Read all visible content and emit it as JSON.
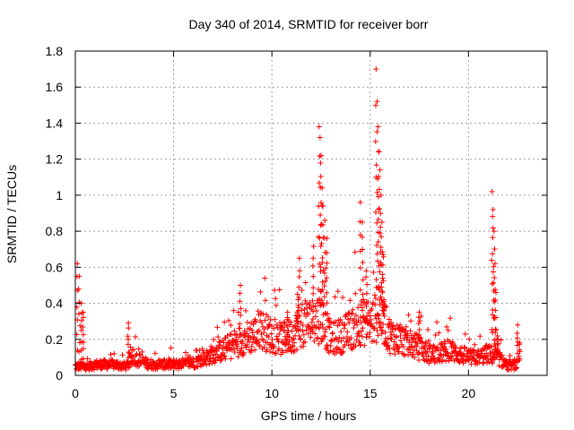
{
  "chart_data": {
    "type": "scatter",
    "title": "Day 340 of 2014, SRMTID for receiver borr",
    "xlabel": "GPS time / hours",
    "ylabel": "SRMTID / TECUs",
    "xlim": [
      0,
      24
    ],
    "ylim": [
      0,
      1.8
    ],
    "xticks": [
      0,
      5,
      10,
      15,
      20
    ],
    "xtick_labels": [
      "0",
      "5",
      "10",
      "15",
      "20"
    ],
    "yticks": [
      0,
      0.2,
      0.4,
      0.6,
      0.8,
      1.0,
      1.2,
      1.4,
      1.6,
      1.8
    ],
    "ytick_labels": [
      "0",
      "0.2",
      "0.4",
      "0.6",
      "0.8",
      "1",
      "1.2",
      "1.4",
      "1.6",
      "1.8"
    ],
    "grid": true,
    "marker": "+",
    "color": "#ff0000",
    "series": [
      {
        "name": "SRMTID",
        "envelope_note": "dense point cloud; baseline and peaks read from plot",
        "baseline": [
          [
            0.0,
            0.05
          ],
          [
            0.7,
            0.05
          ],
          [
            1.0,
            0.06
          ],
          [
            2.0,
            0.06
          ],
          [
            2.6,
            0.05
          ],
          [
            3.0,
            0.1
          ],
          [
            3.5,
            0.07
          ],
          [
            4.0,
            0.06
          ],
          [
            5.0,
            0.06
          ],
          [
            6.0,
            0.07
          ],
          [
            6.5,
            0.09
          ],
          [
            7.0,
            0.12
          ],
          [
            7.5,
            0.14
          ],
          [
            8.0,
            0.17
          ],
          [
            8.5,
            0.2
          ],
          [
            9.0,
            0.22
          ],
          [
            9.5,
            0.25
          ],
          [
            10.0,
            0.22
          ],
          [
            10.5,
            0.2
          ],
          [
            11.0,
            0.22
          ],
          [
            11.5,
            0.28
          ],
          [
            12.0,
            0.3
          ],
          [
            12.5,
            0.32
          ],
          [
            13.0,
            0.2
          ],
          [
            13.5,
            0.22
          ],
          [
            14.0,
            0.25
          ],
          [
            14.5,
            0.3
          ],
          [
            15.0,
            0.28
          ],
          [
            15.5,
            0.35
          ],
          [
            16.0,
            0.22
          ],
          [
            16.5,
            0.2
          ],
          [
            17.0,
            0.18
          ],
          [
            17.5,
            0.15
          ],
          [
            18.0,
            0.12
          ],
          [
            18.5,
            0.12
          ],
          [
            19.0,
            0.14
          ],
          [
            19.5,
            0.12
          ],
          [
            20.0,
            0.1
          ],
          [
            20.5,
            0.1
          ],
          [
            21.0,
            0.12
          ],
          [
            21.5,
            0.1
          ],
          [
            22.0,
            0.05
          ],
          [
            22.5,
            0.06
          ]
        ],
        "peaks": [
          [
            0.1,
            0.62
          ],
          [
            0.2,
            0.55
          ],
          [
            0.3,
            0.4
          ],
          [
            0.4,
            0.35
          ],
          [
            2.7,
            0.29
          ],
          [
            8.4,
            0.5
          ],
          [
            10.8,
            0.35
          ],
          [
            11.3,
            0.45
          ],
          [
            11.4,
            0.65
          ],
          [
            12.1,
            0.65
          ],
          [
            12.4,
            1.38
          ],
          [
            12.45,
            1.32
          ],
          [
            12.5,
            1.22
          ],
          [
            12.55,
            1.04
          ],
          [
            12.6,
            0.94
          ],
          [
            12.7,
            0.86
          ],
          [
            12.8,
            0.76
          ],
          [
            14.5,
            0.96
          ],
          [
            14.6,
            0.85
          ],
          [
            14.8,
            0.58
          ],
          [
            15.3,
            1.7
          ],
          [
            15.35,
            1.52
          ],
          [
            15.4,
            1.38
          ],
          [
            15.45,
            1.24
          ],
          [
            15.5,
            1.14
          ],
          [
            15.55,
            1.0
          ],
          [
            15.6,
            0.85
          ],
          [
            15.65,
            0.67
          ],
          [
            15.7,
            0.42
          ],
          [
            17.5,
            0.35
          ],
          [
            21.2,
            1.02
          ],
          [
            21.25,
            0.92
          ],
          [
            21.3,
            0.8
          ],
          [
            21.35,
            0.62
          ],
          [
            21.4,
            0.46
          ],
          [
            21.5,
            0.2
          ],
          [
            22.5,
            0.28
          ],
          [
            22.6,
            0.18
          ]
        ]
      }
    ]
  }
}
